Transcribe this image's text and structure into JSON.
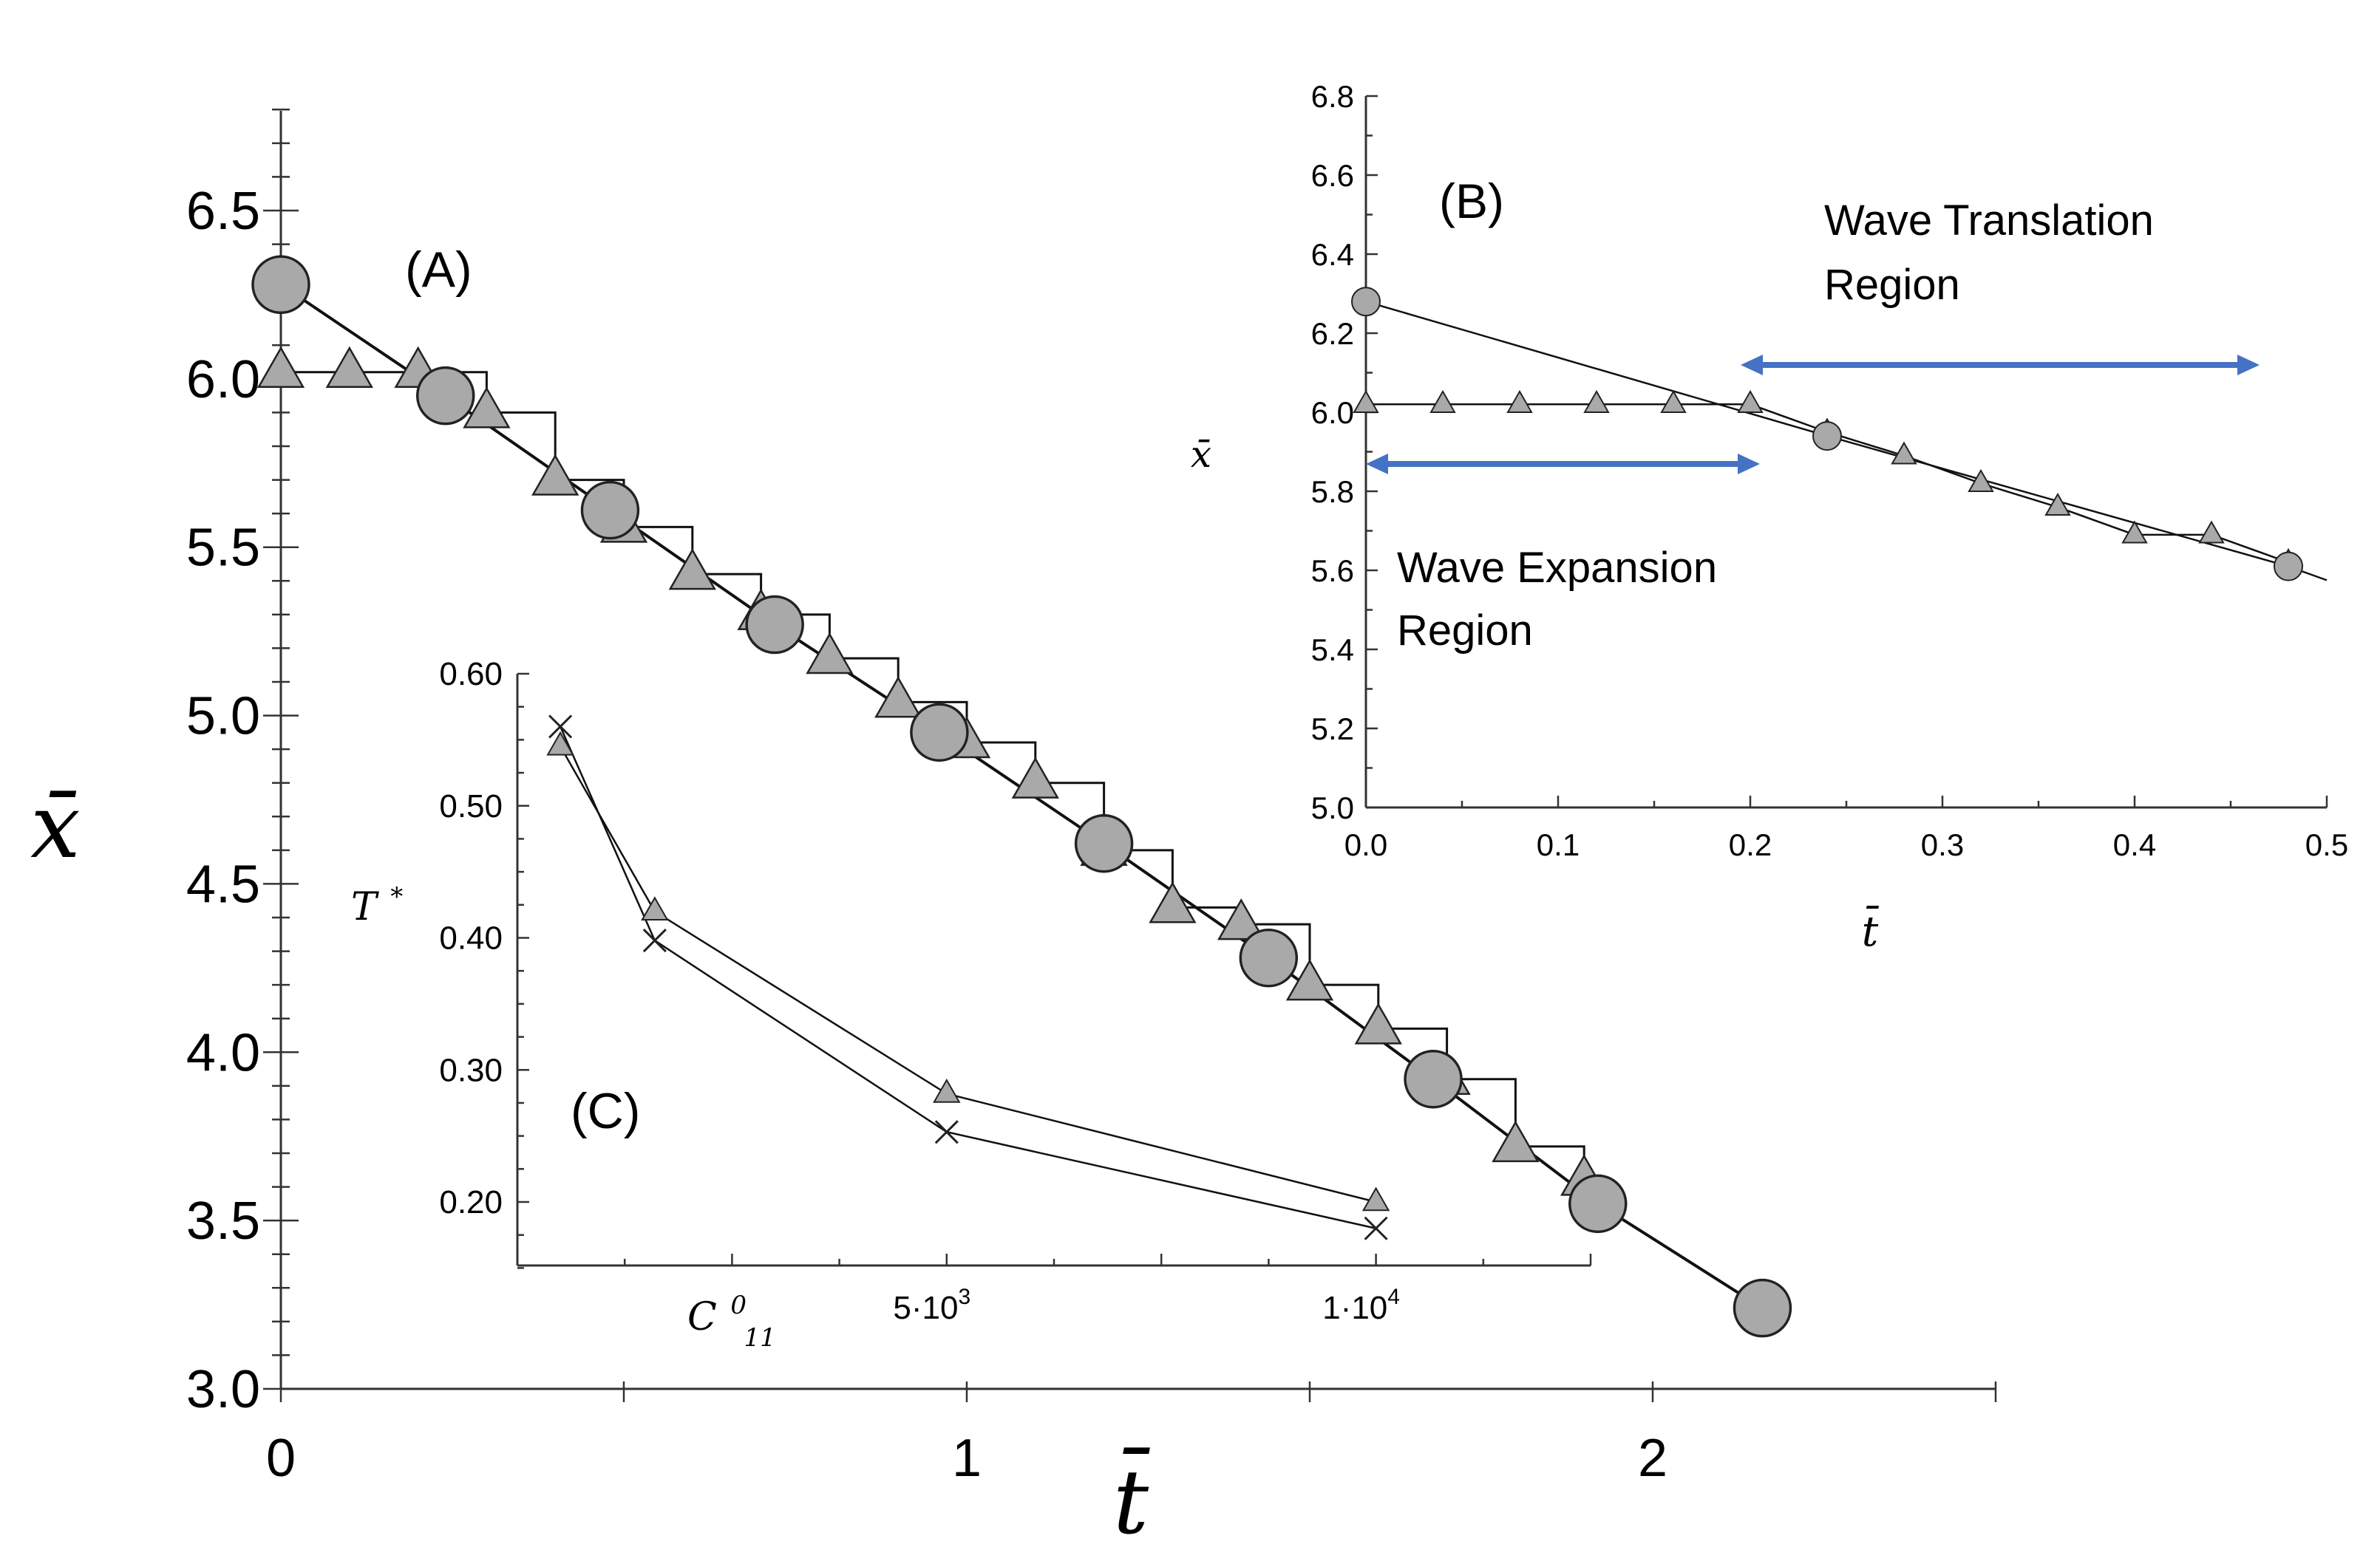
{
  "chart_data": [
    {
      "id": "A",
      "type": "line",
      "panel_label": "(A)",
      "xlabel": "t̄",
      "ylabel": "x̄",
      "xlim": [
        0,
        2.5
      ],
      "ylim": [
        3.0,
        6.8
      ],
      "xticks": [
        "0",
        "1",
        "2"
      ],
      "yticks": [
        "3.0",
        "3.5",
        "4.0",
        "4.5",
        "5.0",
        "5.5",
        "6.0",
        "6.5"
      ],
      "series": [
        {
          "name": "circles",
          "marker": "circle",
          "x": [
            0.0,
            0.24,
            0.48,
            0.72,
            0.96,
            1.2,
            1.44,
            1.68,
            1.92,
            2.16
          ],
          "y": [
            6.28,
            5.95,
            5.61,
            5.27,
            4.95,
            4.62,
            4.28,
            3.92,
            3.55,
            3.24
          ]
        },
        {
          "name": "triangles",
          "marker": "triangle",
          "x": [
            0.0,
            0.1,
            0.2,
            0.3,
            0.4,
            0.5,
            0.6,
            0.7,
            0.8,
            0.9,
            1.0,
            1.1,
            1.2,
            1.3,
            1.4,
            1.5,
            1.6,
            1.7,
            1.8,
            1.9
          ],
          "y": [
            6.02,
            6.02,
            6.02,
            5.9,
            5.7,
            5.56,
            5.42,
            5.3,
            5.17,
            5.04,
            4.92,
            4.8,
            4.6,
            4.43,
            4.38,
            4.2,
            4.07,
            3.92,
            3.72,
            3.62
          ]
        }
      ]
    },
    {
      "id": "B",
      "type": "line",
      "panel_label": "(B)",
      "xlabel": "t̄",
      "ylabel": "x̄",
      "xlim": [
        0.0,
        0.5
      ],
      "ylim": [
        5.0,
        6.8
      ],
      "xticks": [
        "0.0",
        "0.1",
        "0.2",
        "0.3",
        "0.4",
        "0.5"
      ],
      "yticks": [
        "5.0",
        "5.2",
        "5.4",
        "5.6",
        "5.8",
        "6.0",
        "6.2",
        "6.4",
        "6.6",
        "6.8"
      ],
      "series": [
        {
          "name": "circles",
          "marker": "circle",
          "x": [
            0.0,
            0.24,
            0.48
          ],
          "y": [
            6.28,
            5.94,
            5.61
          ]
        },
        {
          "name": "triangles",
          "marker": "triangle",
          "x": [
            0.0,
            0.04,
            0.08,
            0.12,
            0.16,
            0.2,
            0.24,
            0.28,
            0.32,
            0.36,
            0.4,
            0.44,
            0.48
          ],
          "y": [
            6.02,
            6.02,
            6.02,
            6.02,
            6.02,
            6.02,
            5.95,
            5.89,
            5.82,
            5.76,
            5.69,
            5.69,
            5.62
          ]
        }
      ],
      "annotations": {
        "translation_line1": "Wave Translation",
        "translation_line2": "Region",
        "translation_range": [
          0.195,
          0.465
        ],
        "expansion_line1": "Wave Expansion",
        "expansion_line2": "Region",
        "expansion_range": [
          0.0,
          0.205
        ],
        "arrow_color": "#4472c4"
      }
    },
    {
      "id": "C",
      "type": "line",
      "panel_label": "(C)",
      "xlabel": "C",
      "xlabel_sup": "0",
      "xlabel_sub": "11",
      "ylabel": "T",
      "ylabel_sup": "*",
      "xlim": [
        0,
        12500
      ],
      "ylim": [
        0.15,
        0.6
      ],
      "xtick_labels": [
        {
          "value": 5000,
          "base": "5·10",
          "exp": "3"
        },
        {
          "value": 10000,
          "base": "1·10",
          "exp": "4"
        }
      ],
      "yticks": [
        "0.20",
        "0.30",
        "0.40",
        "0.50",
        "0.60"
      ],
      "series": [
        {
          "name": "triangles",
          "marker": "triangle",
          "x": [
            500,
            1600,
            5000,
            10000
          ],
          "y": [
            0.545,
            0.42,
            0.282,
            0.2
          ]
        },
        {
          "name": "crosses",
          "marker": "cross",
          "x": [
            500,
            1600,
            5000,
            10000
          ],
          "y": [
            0.56,
            0.398,
            0.253,
            0.18
          ]
        }
      ]
    }
  ]
}
